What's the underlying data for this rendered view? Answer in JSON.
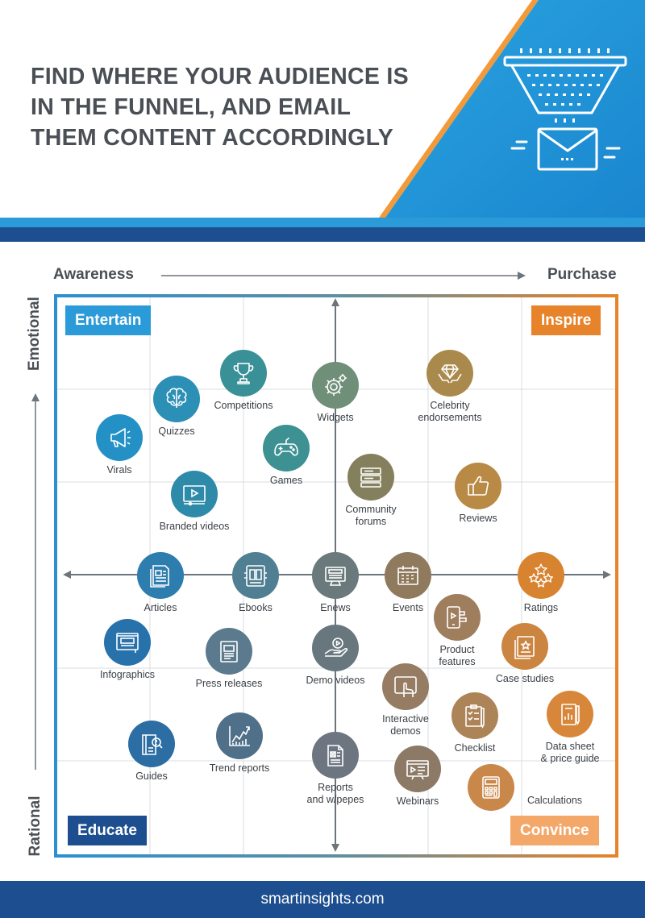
{
  "header": {
    "title_lines": [
      "FIND WHERE YOUR AUDIENCE IS",
      "IN THE FUNNEL, AND EMAIL",
      "THEM CONTENT ACCORDINGLY"
    ]
  },
  "axes": {
    "x_left": "Awareness",
    "x_right": "Purchase",
    "y_top": "Emotional",
    "y_bottom": "Rational"
  },
  "quadrants": {
    "top_left": "Entertain",
    "top_right": "Inspire",
    "bottom_left": "Educate",
    "bottom_right": "Convince"
  },
  "colors": {
    "blue_light": "#2b9ad8",
    "blue_dark": "#1d4e8f",
    "orange": "#e7832a",
    "teal": "#2b8aae",
    "grey_text": "#4a4f55",
    "footer": "#1d4e8f"
  },
  "items": [
    {
      "label": "Competitions",
      "icon": "trophy-icon",
      "color": "#3a9097"
    },
    {
      "label": "Quizzes",
      "icon": "brain-icon",
      "color": "#2b8fb6"
    },
    {
      "label": "Virals",
      "icon": "megaphone-icon",
      "color": "#2491c6"
    },
    {
      "label": "Widgets",
      "icon": "gear-icon",
      "color": "#6f8f78"
    },
    {
      "label": "Celebrity\nendorsements",
      "icon": "diamond-hands-icon",
      "color": "#a98a4c"
    },
    {
      "label": "Games",
      "icon": "gamepad-icon",
      "color": "#3d9193"
    },
    {
      "label": "Community\nforums",
      "icon": "forum-icon",
      "color": "#84805e"
    },
    {
      "label": "Reviews",
      "icon": "thumbs-up-icon",
      "color": "#b88a45"
    },
    {
      "label": "Branded videos",
      "icon": "video-player-icon",
      "color": "#2e8aa9"
    },
    {
      "label": "Articles",
      "icon": "article-icon",
      "color": "#2d7dae"
    },
    {
      "label": "Ebooks",
      "icon": "ebook-icon",
      "color": "#507f93"
    },
    {
      "label": "Enews",
      "icon": "newsletter-icon",
      "color": "#6a7a7c"
    },
    {
      "label": "Events",
      "icon": "calendar-icon",
      "color": "#8f7a5e"
    },
    {
      "label": "Ratings",
      "icon": "stars-icon",
      "color": "#d8832f"
    },
    {
      "label": "Infographics",
      "icon": "infographic-icon",
      "color": "#2872ac"
    },
    {
      "label": "Press releases",
      "icon": "press-release-icon",
      "color": "#5b7a8d"
    },
    {
      "label": "Demo videos",
      "icon": "demo-video-icon",
      "color": "#68767e"
    },
    {
      "label": "Product\nfeatures",
      "icon": "phone-features-icon",
      "color": "#9f7e5e"
    },
    {
      "label": "Case studies",
      "icon": "case-study-icon",
      "color": "#cc8540"
    },
    {
      "label": "Interactive\ndemos",
      "icon": "tablet-touch-icon",
      "color": "#957c63"
    },
    {
      "label": "Checklist",
      "icon": "checklist-icon",
      "color": "#ad8457"
    },
    {
      "label": "Data sheet\n& price guide",
      "icon": "data-sheet-icon",
      "color": "#d8873a"
    },
    {
      "label": "Guides",
      "icon": "guide-book-icon",
      "color": "#2c6ea4"
    },
    {
      "label": "Trend reports",
      "icon": "trend-chart-icon",
      "color": "#4f7088"
    },
    {
      "label": "Reports\nand w/pepes",
      "icon": "report-icon",
      "color": "#6d7580"
    },
    {
      "label": "Webinars",
      "icon": "webinar-icon",
      "color": "#8c7a66"
    },
    {
      "label": "Calculations",
      "icon": "calculator-icon",
      "color": "#c9874a"
    }
  ],
  "footer": {
    "site": "smartinsights.com"
  }
}
